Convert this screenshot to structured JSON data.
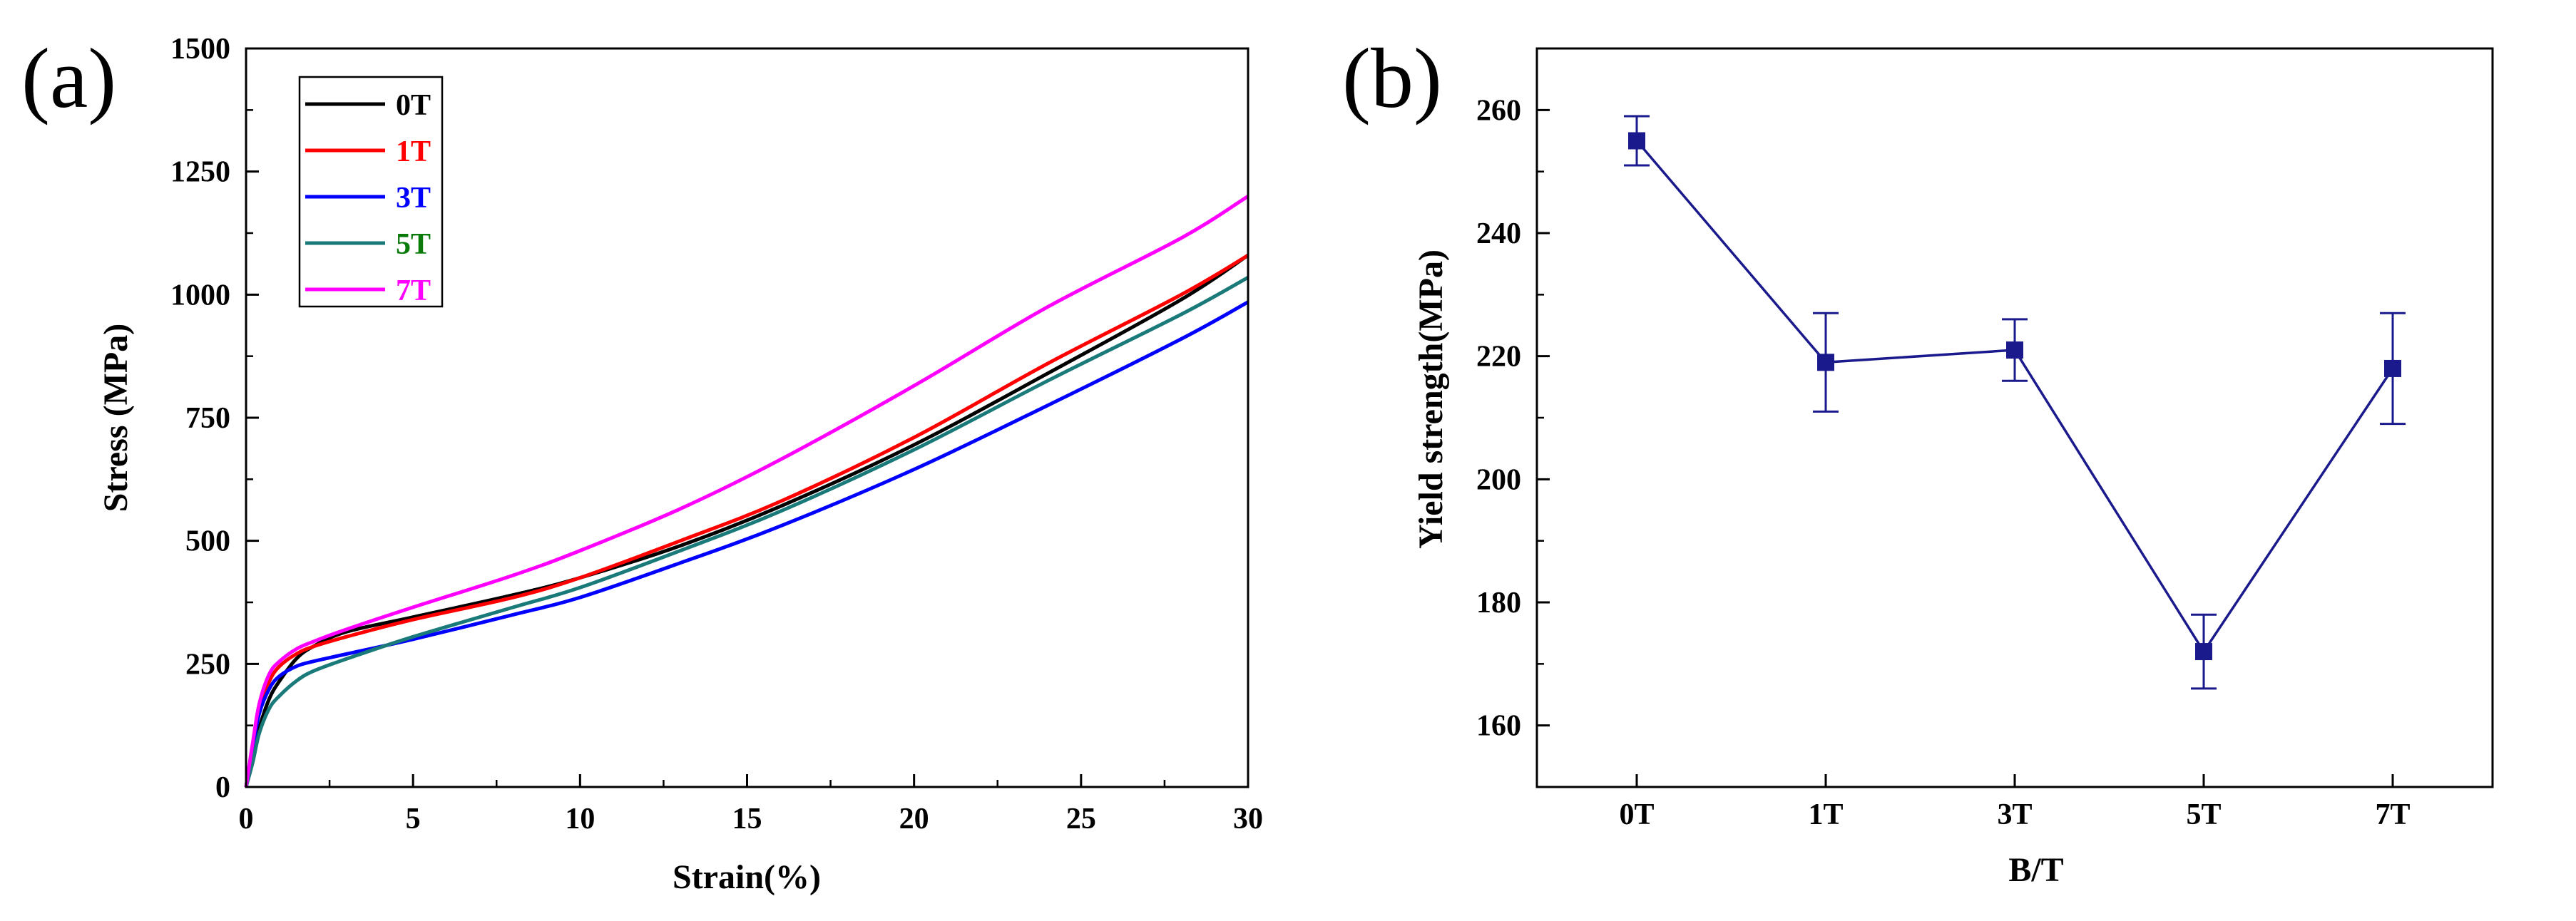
{
  "chart_data": [
    {
      "panel": "(a)",
      "type": "line",
      "title": "",
      "xlabel": "Strain(%)",
      "ylabel": "Stress (MPa)",
      "xlim": [
        0,
        30
      ],
      "ylim": [
        0,
        1500
      ],
      "xticks": [
        0,
        5,
        10,
        15,
        20,
        25,
        30
      ],
      "yticks": [
        0,
        250,
        500,
        750,
        1000,
        1250,
        1500
      ],
      "grid": false,
      "legend_position": "top-left",
      "series": [
        {
          "name": "0T",
          "color": "#000000",
          "x": [
            0,
            0.2,
            0.4,
            0.7,
            1,
            1.5,
            2,
            3,
            5,
            8,
            10,
            13,
            16,
            20,
            24,
            28,
            30
          ],
          "y": [
            0,
            60,
            120,
            180,
            215,
            260,
            285,
            315,
            345,
            390,
            425,
            490,
            570,
            695,
            840,
            990,
            1080
          ]
        },
        {
          "name": "1T",
          "color": "#ff0000",
          "x": [
            0,
            0.2,
            0.4,
            0.7,
            1,
            1.5,
            2,
            3,
            5,
            8,
            10,
            13,
            16,
            20,
            24,
            28,
            30
          ],
          "y": [
            0,
            80,
            155,
            215,
            245,
            270,
            285,
            305,
            340,
            385,
            425,
            500,
            580,
            710,
            860,
            1000,
            1080
          ]
        },
        {
          "name": "3T",
          "color": "#0000ff",
          "x": [
            0,
            0.2,
            0.4,
            0.7,
            1,
            1.5,
            2,
            3,
            5,
            8,
            10,
            13,
            16,
            20,
            24,
            28,
            30
          ],
          "y": [
            0,
            80,
            150,
            200,
            225,
            245,
            255,
            270,
            300,
            350,
            385,
            455,
            530,
            645,
            775,
            910,
            985
          ]
        },
        {
          "name": "5T",
          "color": "#1a7a7a",
          "x": [
            0,
            0.2,
            0.4,
            0.7,
            1,
            1.5,
            2,
            3,
            5,
            8,
            10,
            13,
            16,
            20,
            24,
            28,
            30
          ],
          "y": [
            0,
            50,
            110,
            160,
            185,
            215,
            235,
            260,
            305,
            365,
            405,
            480,
            560,
            685,
            825,
            960,
            1035
          ]
        },
        {
          "name": "7T",
          "color": "#ff00ff",
          "x": [
            0,
            0.2,
            0.4,
            0.7,
            1,
            1.5,
            2,
            3,
            5,
            8,
            10,
            13,
            16,
            20,
            24,
            28,
            30
          ],
          "y": [
            0,
            90,
            170,
            230,
            255,
            280,
            295,
            320,
            365,
            430,
            480,
            565,
            665,
            815,
            975,
            1115,
            1200
          ]
        }
      ]
    },
    {
      "panel": "(b)",
      "type": "line",
      "title": "",
      "xlabel": "B/T",
      "ylabel": "Yield strength(MPa)",
      "ylim": [
        150,
        270
      ],
      "yticks": [
        160,
        180,
        200,
        220,
        240,
        260
      ],
      "grid": false,
      "categories": [
        "0T",
        "1T",
        "3T",
        "5T",
        "7T"
      ],
      "color": "#1a1a8c",
      "values": [
        255,
        219,
        221,
        172,
        218
      ],
      "errors": [
        4,
        8,
        5,
        6,
        9
      ]
    }
  ]
}
